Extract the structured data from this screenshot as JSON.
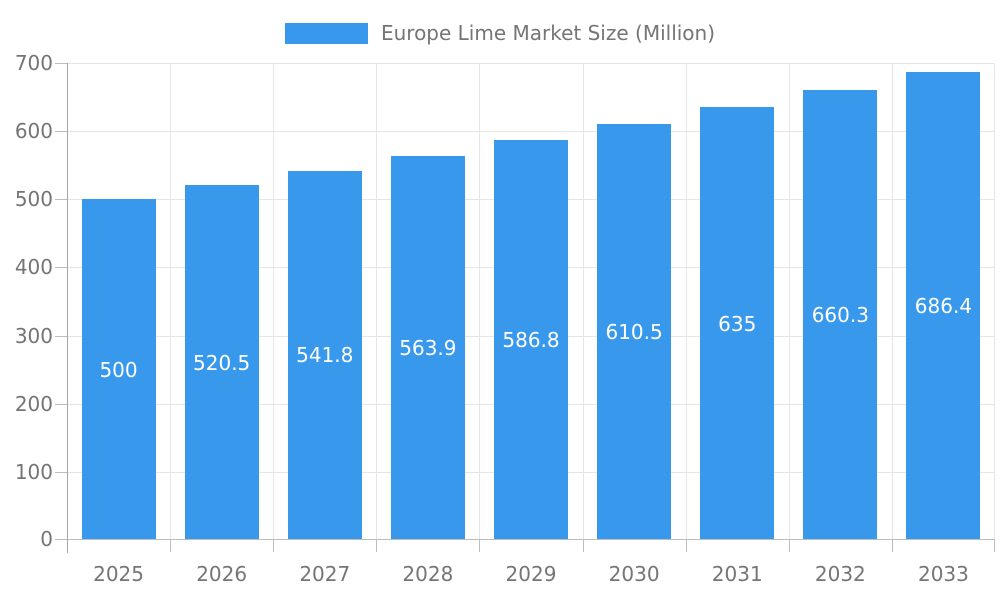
{
  "chart_data": {
    "type": "bar",
    "title": "Europe Lime Market Size (Million)",
    "categories": [
      "2025",
      "2026",
      "2027",
      "2028",
      "2029",
      "2030",
      "2031",
      "2032",
      "2033"
    ],
    "values": [
      500,
      520.5,
      541.8,
      563.9,
      586.8,
      610.5,
      635,
      660.3,
      686.4
    ],
    "value_labels": [
      "500",
      "520.5",
      "541.8",
      "563.9",
      "586.8",
      "610.5",
      "635",
      "660.3",
      "686.4"
    ],
    "xlabel": "",
    "ylabel": "",
    "ylim": [
      0,
      700
    ],
    "ytick_step": 100,
    "yticks": [
      0,
      100,
      200,
      300,
      400,
      500,
      600,
      700
    ],
    "grid": true,
    "legend": {
      "position": "top",
      "label": "Europe Lime Market Size (Million)"
    },
    "colors": {
      "bar": "#3898ec",
      "grid": "#e6e6e6",
      "axis_line": "#a6a6a6",
      "tick_line": "#bdbdbd",
      "axis_text": "#757575",
      "value_text": "#ffffff",
      "legend_text": "#757575",
      "background": "#ffffff"
    }
  }
}
